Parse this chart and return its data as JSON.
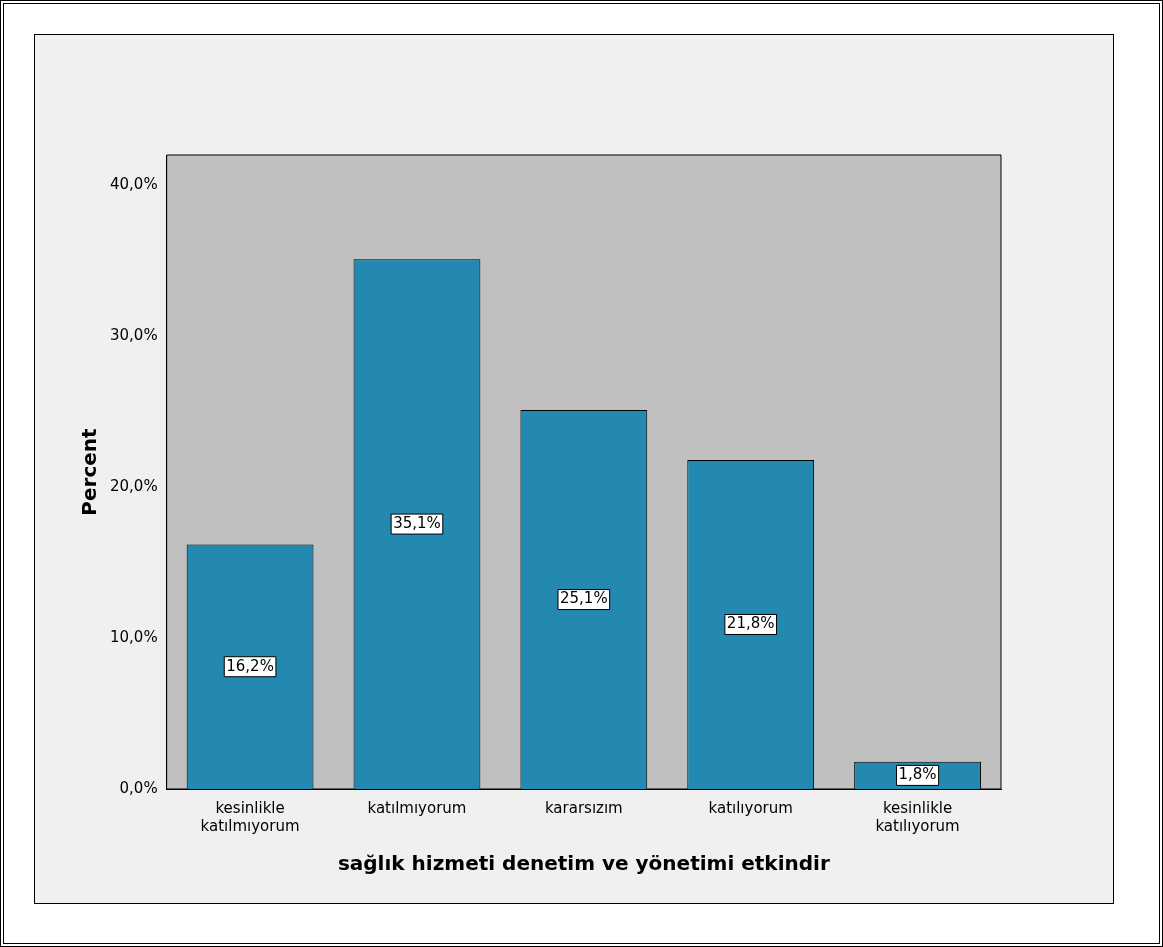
{
  "chart_data": {
    "type": "bar",
    "xlabel": "sağlık hizmeti denetim ve yönetimi etkindir",
    "ylabel": "Percent",
    "categories": [
      "kesinlikle katılmıyorum",
      "katılmıyorum",
      "kararsızım",
      "katılıyorum",
      "kesinlikle katılıyorum"
    ],
    "values": [
      16.2,
      35.1,
      25.1,
      21.8,
      1.8
    ],
    "value_labels": [
      "16,2%",
      "35,1%",
      "25,1%",
      "21,8%",
      "1,8%"
    ],
    "color": "#2489b0",
    "ylim": [
      0,
      42
    ],
    "yticks": [
      {
        "value": 0,
        "label": "0,0%"
      },
      {
        "value": 10,
        "label": "10,0%"
      },
      {
        "value": 20,
        "label": "20,0%"
      },
      {
        "value": 30,
        "label": "30,0%"
      },
      {
        "value": 40,
        "label": "40,0%"
      }
    ],
    "grid": false,
    "legend": false
  }
}
